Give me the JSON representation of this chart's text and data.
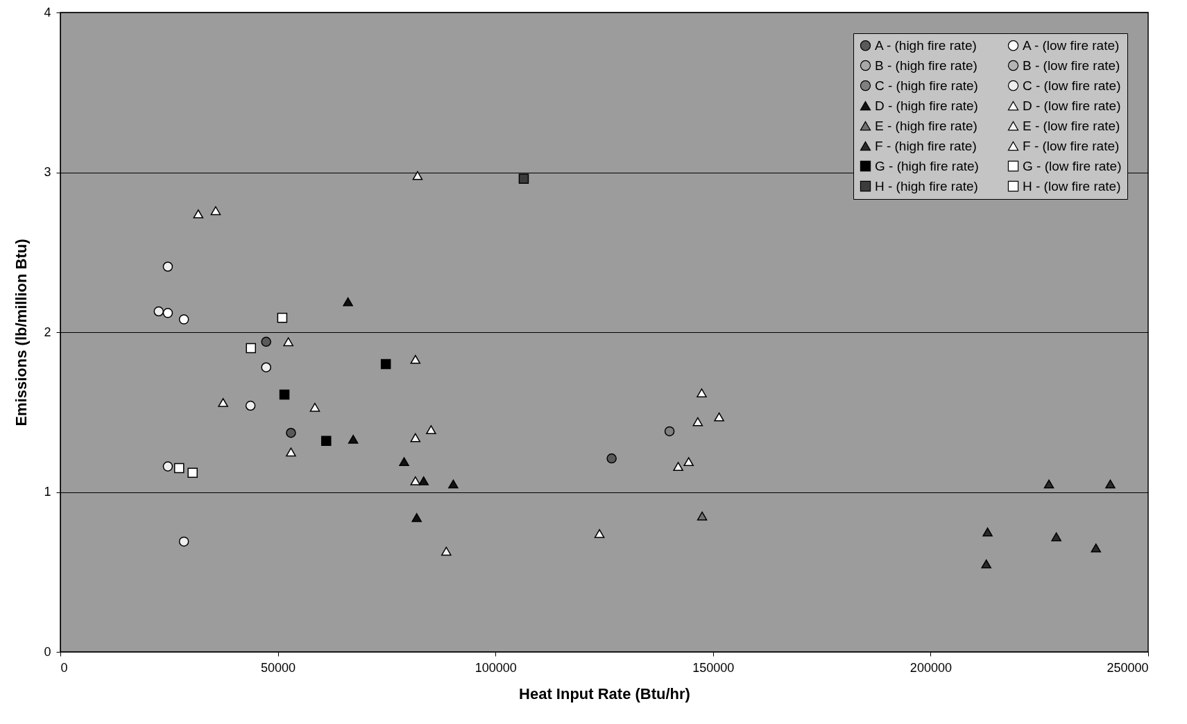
{
  "chart_data": {
    "type": "scatter",
    "xlabel": "Heat Input Rate (Btu/hr)",
    "ylabel": "Emissions (lb/million Btu)",
    "xlim": [
      0,
      250000
    ],
    "ylim": [
      0,
      4
    ],
    "xticks": [
      0,
      50000,
      100000,
      150000,
      200000,
      250000
    ],
    "yticks": [
      0,
      1,
      2,
      3,
      4
    ],
    "grid": "y",
    "legend": "top right",
    "series": [
      {
        "name": "A - (high fire rate)",
        "marker": "circle",
        "color": "#5a5a5a",
        "x": [
          47300,
          53000,
          126700
        ],
        "values": [
          1.94,
          1.37,
          1.21
        ]
      },
      {
        "name": "A - (low fire rate)",
        "marker": "circle",
        "color": "#ffffff",
        "x": [
          24700,
          28400
        ],
        "values": [
          2.12,
          2.08
        ]
      },
      {
        "name": "B - (high fire rate)",
        "marker": "circle",
        "color": "#a8a8a8"
      },
      {
        "name": "B - (low fire rate)",
        "marker": "circle",
        "color": "#b4b4b4"
      },
      {
        "name": "C - (high fire rate)",
        "marker": "circle",
        "color": "#808080",
        "x": [
          140000
        ],
        "values": [
          1.38
        ]
      },
      {
        "name": "C - (low fire rate)",
        "marker": "circle",
        "color": "#eeeeee",
        "x": [
          24700,
          22600,
          47300,
          43700,
          24700,
          28400
        ],
        "values": [
          2.41,
          2.13,
          1.78,
          1.54,
          1.16,
          0.69
        ]
      },
      {
        "name": "D - (high fire rate)",
        "marker": "triangle",
        "color": "#111111",
        "x": [
          66100,
          79000,
          83500,
          90300,
          81900,
          67300
        ],
        "values": [
          2.19,
          1.19,
          1.07,
          1.05,
          0.84,
          1.33
        ]
      },
      {
        "name": "D - (low fire rate)",
        "marker": "triangle",
        "color": "#ffffff",
        "x": [
          31700,
          35700,
          52400,
          37400,
          58500,
          53000,
          123900
        ],
        "values": [
          2.74,
          2.76,
          1.94,
          1.56,
          1.53,
          1.25,
          0.74
        ]
      },
      {
        "name": "E - (high fire rate)",
        "marker": "triangle",
        "color": "#707070",
        "x": [
          147500
        ],
        "values": [
          0.85
        ]
      },
      {
        "name": "E - (low fire rate)",
        "marker": "triangle",
        "color": "#f4f4f4",
        "x": [
          82100,
          81600,
          81600,
          85200,
          81600,
          88700,
          146500
        ],
        "values": [
          2.98,
          1.83,
          1.34,
          1.39,
          1.07,
          0.63,
          1.44
        ]
      },
      {
        "name": "F - (high fire rate)",
        "marker": "triangle",
        "color": "#2a2a2a",
        "x": [
          213100,
          212800,
          227200,
          228900,
          238000,
          241300
        ],
        "values": [
          0.75,
          0.55,
          1.05,
          0.72,
          0.65,
          1.05
        ]
      },
      {
        "name": "F - (low fire rate)",
        "marker": "triangle",
        "color": "#ffffff",
        "x": [
          147400,
          151400,
          142000,
          144400
        ],
        "values": [
          1.62,
          1.47,
          1.16,
          1.19
        ]
      },
      {
        "name": "G - (high fire rate)",
        "marker": "square",
        "color": "#000000",
        "x": [
          51500,
          61100,
          74800
        ],
        "values": [
          1.61,
          1.32,
          1.8
        ]
      },
      {
        "name": "G - (low fire rate)",
        "marker": "square",
        "color": "#ffffff",
        "x": [
          51000,
          43800,
          27300,
          30400
        ],
        "values": [
          2.09,
          1.9,
          1.15,
          1.12
        ]
      },
      {
        "name": "H - (high fire rate)",
        "marker": "square",
        "color": "#3c3c3c",
        "x": [
          106500
        ],
        "values": [
          2.96
        ]
      },
      {
        "name": "H - (low fire rate)",
        "marker": "square",
        "color": "#ffffff"
      }
    ]
  }
}
